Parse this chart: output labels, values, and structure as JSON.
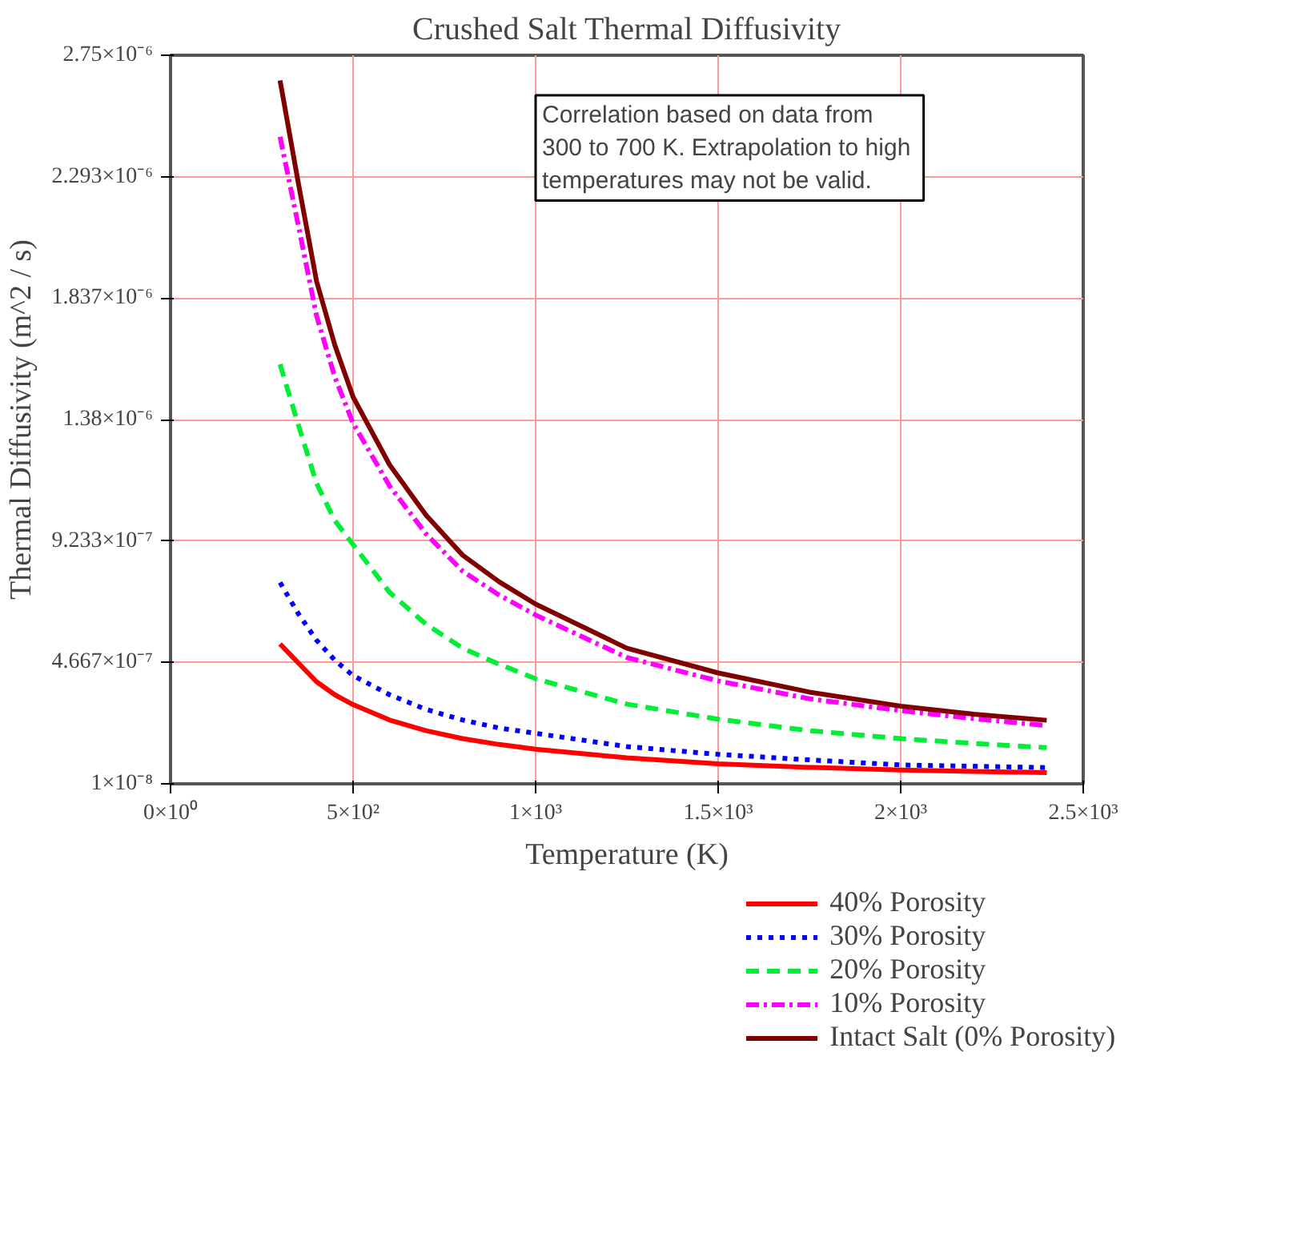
{
  "chart_data": {
    "type": "line",
    "title": "Crushed Salt Thermal Diffusivity",
    "xlabel": "Temperature (K)",
    "ylabel": "Thermal Diffusivity (m^2 / s)",
    "annotations": [
      "Correlation based on data from\n300 to 700 K.  Extrapolation to high\ntemperatures may not be valid."
    ],
    "x": [
      300,
      350,
      400,
      450,
      500,
      600,
      700,
      800,
      900,
      1000,
      1250,
      1500,
      1750,
      2000,
      2200,
      2400
    ],
    "xlim": [
      0,
      2500
    ],
    "xticks": [
      {
        "value": 0,
        "label": "0×10⁰"
      },
      {
        "value": 500,
        "label": "5×10²"
      },
      {
        "value": 1000,
        "label": "1×10³"
      },
      {
        "value": 1500,
        "label": "1.5×10³"
      },
      {
        "value": 2000,
        "label": "2×10³"
      },
      {
        "value": 2500,
        "label": "2.5×10³"
      }
    ],
    "ylim": [
      1e-08,
      2.75e-06
    ],
    "yticks": [
      {
        "value": 1e-08,
        "label": "1×10⁻⁸"
      },
      {
        "value": 4.667e-07,
        "label": "4.667×10⁻⁷"
      },
      {
        "value": 9.233e-07,
        "label": "9.233×10⁻⁷"
      },
      {
        "value": 1.38e-06,
        "label": "1.38×10⁻⁶"
      },
      {
        "value": 1.837e-06,
        "label": "1.837×10⁻⁶"
      },
      {
        "value": 2.293e-06,
        "label": "2.293×10⁻⁶"
      },
      {
        "value": 2.75e-06,
        "label": "2.75×10⁻⁶"
      }
    ],
    "grid": true,
    "legend": "bottom",
    "marker": "none",
    "series": [
      {
        "name": "40% Porosity",
        "color": "#ff0000",
        "line_style": "solid",
        "x": [
          300,
          400,
          450,
          500,
          600,
          700,
          800,
          900,
          1000,
          1250,
          1500,
          1750,
          2000,
          2200,
          2400
        ],
        "values": [
          5.36e-07,
          3.94e-07,
          3.45e-07,
          3.08e-07,
          2.5e-07,
          2.1e-07,
          1.8e-07,
          1.58e-07,
          1.4e-07,
          1.08e-07,
          8.5e-08,
          7.2e-08,
          6.2e-08,
          5.7e-08,
          5.2e-08
        ]
      },
      {
        "name": "30% Porosity",
        "color": "#0000ff",
        "line_style": "dotted",
        "values": [
          7.67e-07,
          6.5e-07,
          5.5e-07,
          4.75e-07,
          4.17e-07,
          3.45e-07,
          2.9e-07,
          2.5e-07,
          2.2e-07,
          2e-07,
          1.5e-07,
          1.21e-07,
          1e-07,
          8.1e-08,
          7.6e-08,
          7.1e-08
        ]
      },
      {
        "name": "20% Porosity",
        "color": "#00ee33",
        "line_style": "dashed",
        "values": [
          1.588e-06,
          1.36e-06,
          1.14e-06,
          1e-06,
          9.1e-07,
          7.3e-07,
          6.1e-07,
          5.2e-07,
          4.6e-07,
          4.05e-07,
          3.1e-07,
          2.53e-07,
          2.1e-07,
          1.8e-07,
          1.62e-07,
          1.46e-07
        ]
      },
      {
        "name": "10% Porosity",
        "color": "#ff00ff",
        "line_style": "dashdot",
        "values": [
          2.443e-06,
          2.11e-06,
          1.77e-06,
          1.54e-06,
          1.366e-06,
          1.13e-06,
          9.5e-07,
          8.1e-07,
          7.2e-07,
          6.45e-07,
          4.85e-07,
          3.97e-07,
          3.3e-07,
          2.85e-07,
          2.55e-07,
          2.29e-07
        ]
      },
      {
        "name": "Intact Salt (0% Porosity)",
        "color": "#800000",
        "line_style": "solid",
        "values": [
          2.655e-06,
          2.27e-06,
          1.9e-06,
          1.66e-06,
          1.465e-06,
          1.21e-06,
          1.02e-06,
          8.7e-07,
          7.7e-07,
          6.86e-07,
          5.2e-07,
          4.27e-07,
          3.55e-07,
          3.02e-07,
          2.72e-07,
          2.49e-07
        ]
      }
    ]
  }
}
